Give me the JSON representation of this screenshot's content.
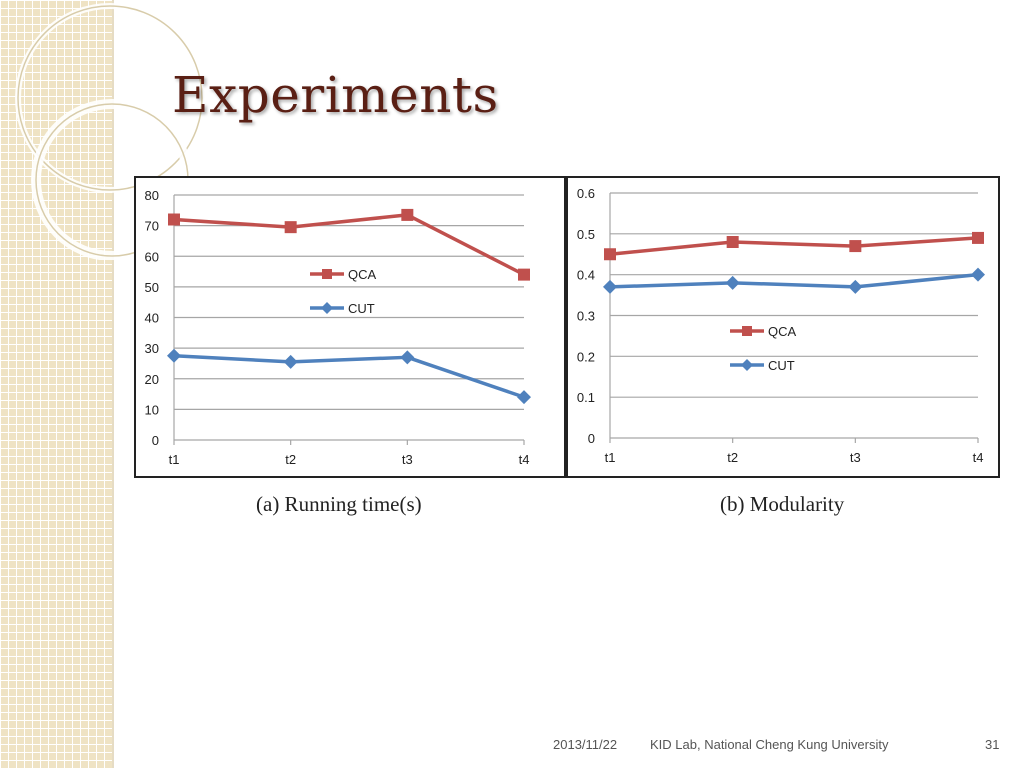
{
  "slide": {
    "title": "Experiments",
    "footer": {
      "date": "2013/11/22",
      "organization": "KID Lab, National Cheng Kung University",
      "page_number": "31"
    }
  },
  "chart_data": [
    {
      "type": "line",
      "caption": "(a) Running time(s)",
      "categories": [
        "t1",
        "t2",
        "t3",
        "t4"
      ],
      "ylim": [
        0,
        80
      ],
      "yticks": [
        0,
        10,
        20,
        30,
        40,
        50,
        60,
        70,
        80
      ],
      "grid": true,
      "legend_position": "center-right",
      "series": [
        {
          "name": "QCA",
          "values": [
            72,
            69.5,
            73.5,
            54
          ],
          "color": "#c0504d",
          "marker": "square"
        },
        {
          "name": "CUT",
          "values": [
            27.5,
            25.5,
            27,
            14
          ],
          "color": "#4f81bd",
          "marker": "diamond"
        }
      ]
    },
    {
      "type": "line",
      "caption": "(b) Modularity",
      "categories": [
        "t1",
        "t2",
        "t3",
        "t4"
      ],
      "ylim": [
        0,
        0.6
      ],
      "yticks": [
        0,
        0.1,
        0.2,
        0.3,
        0.4,
        0.5,
        0.6
      ],
      "grid": true,
      "legend_position": "center",
      "series": [
        {
          "name": "QCA",
          "values": [
            0.45,
            0.48,
            0.47,
            0.49
          ],
          "color": "#c0504d",
          "marker": "square"
        },
        {
          "name": "CUT",
          "values": [
            0.37,
            0.38,
            0.37,
            0.4
          ],
          "color": "#4f81bd",
          "marker": "diamond"
        }
      ]
    }
  ]
}
